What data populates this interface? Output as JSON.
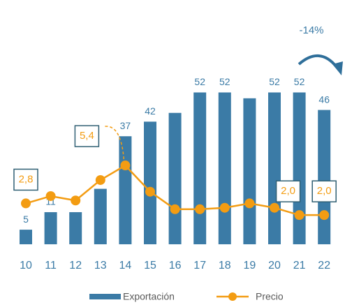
{
  "chart_data": {
    "type": "bar+line",
    "annotation": "-14%",
    "categories": [
      "10",
      "11",
      "12",
      "13",
      "14",
      "15",
      "16",
      "17",
      "18",
      "19",
      "20",
      "21",
      "22"
    ],
    "ylim": [
      0,
      60
    ],
    "y2lim": [
      0,
      12
    ],
    "series": [
      {
        "name": "Exportación",
        "type": "bar",
        "color": "#3b7ba6",
        "values": [
          5,
          11,
          11,
          19,
          37,
          42,
          45,
          52,
          52,
          50,
          52,
          52,
          46
        ],
        "value_labels": [
          "5",
          "11",
          null,
          null,
          "37",
          "42",
          null,
          "52",
          "52",
          null,
          "52",
          "52",
          "46"
        ]
      },
      {
        "name": "Precio",
        "type": "line",
        "axis": "y2",
        "color": "#f39c12",
        "values": [
          2.8,
          3.3,
          3.0,
          4.4,
          5.4,
          3.6,
          2.4,
          2.4,
          2.5,
          2.8,
          2.5,
          2.0,
          2.0
        ],
        "value_labels": [
          "2,8",
          null,
          null,
          null,
          "5,4",
          null,
          null,
          null,
          null,
          null,
          null,
          "2,0",
          "2,0"
        ]
      }
    ]
  }
}
